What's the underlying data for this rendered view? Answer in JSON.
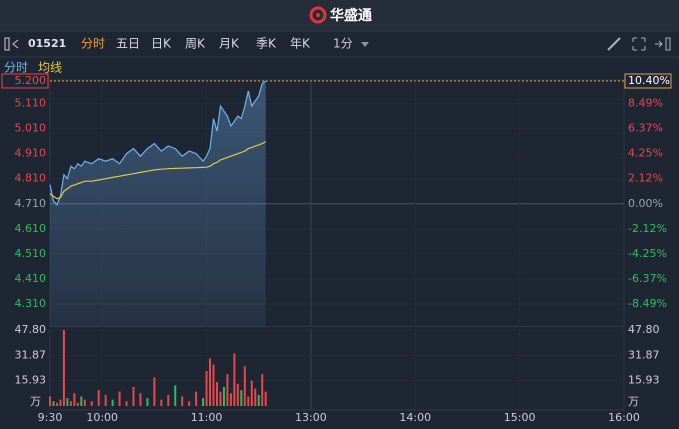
{
  "header": {
    "logo": "华盛通"
  },
  "toolbar": {
    "code": "01521",
    "tabs": [
      "分时",
      "五日",
      "日K",
      "周K",
      "月K",
      "季K",
      "年K"
    ],
    "active_tab": 0,
    "interval": "1分"
  },
  "chart_data": {
    "type": "line",
    "x": [
      0,
      2,
      4,
      6,
      8,
      10,
      12,
      14,
      16,
      18,
      20,
      24,
      28,
      32,
      36,
      40,
      44,
      48,
      52,
      56,
      60,
      64,
      68,
      72,
      76,
      80,
      84,
      88,
      90,
      92,
      94,
      96,
      98,
      100,
      102,
      104,
      106,
      108,
      110,
      112,
      114,
      116,
      118,
      120,
      122,
      124
    ],
    "xlim": [
      0,
      330
    ],
    "xticks": [
      {
        "value": 0,
        "label": "9:30"
      },
      {
        "value": 30,
        "label": "10:00"
      },
      {
        "value": 90,
        "label": "11:00"
      },
      {
        "value": 150,
        "label": "13:00"
      },
      {
        "value": 210,
        "label": "14:00"
      },
      {
        "value": 270,
        "label": "15:00"
      },
      {
        "value": 330,
        "label": "16:00"
      }
    ],
    "series": [
      {
        "name": "分时",
        "color": "#6db3f2",
        "values": [
          4.786,
          4.72,
          4.706,
          4.74,
          4.826,
          4.81,
          4.86,
          4.85,
          4.87,
          4.86,
          4.88,
          4.87,
          4.89,
          4.88,
          4.89,
          4.87,
          4.91,
          4.93,
          4.9,
          4.93,
          4.95,
          4.92,
          4.94,
          4.93,
          4.9,
          4.92,
          4.91,
          4.88,
          4.9,
          4.93,
          5.05,
          5.0,
          5.1,
          5.08,
          5.06,
          5.02,
          5.04,
          5.06,
          5.05,
          5.1,
          5.16,
          5.1,
          5.12,
          5.14,
          5.19,
          5.2
        ]
      },
      {
        "name": "均线",
        "color": "#e8c547",
        "values": [
          4.75,
          4.74,
          4.73,
          4.735,
          4.76,
          4.77,
          4.78,
          4.785,
          4.79,
          4.795,
          4.8,
          4.8,
          4.805,
          4.81,
          4.815,
          4.82,
          4.825,
          4.83,
          4.835,
          4.84,
          4.845,
          4.848,
          4.85,
          4.851,
          4.852,
          4.853,
          4.854,
          4.855,
          4.856,
          4.86,
          4.87,
          4.875,
          4.885,
          4.89,
          4.895,
          4.9,
          4.905,
          4.91,
          4.915,
          4.92,
          4.93,
          4.935,
          4.94,
          4.945,
          4.95,
          4.958
        ]
      }
    ],
    "ylim": [
      4.22,
      5.2
    ],
    "yticks": [
      {
        "value": 5.2,
        "label": "5.200"
      },
      {
        "value": 5.11,
        "label": "5.110"
      },
      {
        "value": 5.01,
        "label": "5.010"
      },
      {
        "value": 4.91,
        "label": "4.910"
      },
      {
        "value": 4.81,
        "label": "4.810"
      },
      {
        "value": 4.71,
        "label": "4.710"
      },
      {
        "value": 4.61,
        "label": "4.610"
      },
      {
        "value": 4.51,
        "label": "4.510"
      },
      {
        "value": 4.41,
        "label": "4.410"
      },
      {
        "value": 4.31,
        "label": "4.310"
      }
    ],
    "y2lim": [
      -10.4,
      10.4
    ],
    "y2ticks": [
      {
        "value": 10.4,
        "label": "10.40%"
      },
      {
        "value": 8.49,
        "label": "8.49%"
      },
      {
        "value": 6.37,
        "label": "6.37%"
      },
      {
        "value": 4.25,
        "label": "4.25%"
      },
      {
        "value": 2.12,
        "label": "2.12%"
      },
      {
        "value": 0,
        "label": "0.00%"
      },
      {
        "value": -2.12,
        "label": "-2.12%"
      },
      {
        "value": -4.25,
        "label": "-4.25%"
      },
      {
        "value": -6.37,
        "label": "-6.37%"
      },
      {
        "value": -8.49,
        "label": "-8.49%"
      }
    ],
    "volume": {
      "unit": "万",
      "values": [
        6,
        3,
        2,
        4,
        47.8,
        5,
        3,
        8,
        2,
        6,
        4,
        3,
        10,
        7,
        4,
        9,
        3,
        12,
        8,
        5,
        18,
        4,
        7,
        13,
        6,
        3,
        9,
        5,
        22,
        30,
        26,
        15,
        9,
        12,
        20,
        8,
        33,
        14,
        10,
        25,
        6,
        16,
        11,
        7,
        20,
        9
      ],
      "colors": [
        "#e8474c",
        "#2ebd59",
        "#e8474c",
        "#e8474c",
        "#e8474c",
        "#2ebd59",
        "#e8474c",
        "#e8474c",
        "#e8474c",
        "#2ebd59",
        "#e8474c",
        "#e8474c",
        "#e8474c",
        "#e8474c",
        "#2ebd59",
        "#e8474c",
        "#e8474c",
        "#e8474c",
        "#e8474c",
        "#2ebd59",
        "#e8474c",
        "#e8474c",
        "#e8474c",
        "#2ebd59",
        "#e8474c",
        "#e8474c",
        "#e8474c",
        "#2ebd59",
        "#e8474c",
        "#e8474c",
        "#e8474c",
        "#e8474c",
        "#e8474c",
        "#2ebd59",
        "#e8474c",
        "#e8474c",
        "#e8474c",
        "#e8474c",
        "#2ebd59",
        "#e8474c",
        "#e8474c",
        "#e8474c",
        "#e8474c",
        "#2ebd59",
        "#e8474c",
        "#e8474c"
      ],
      "ylim": [
        0,
        47.8
      ],
      "yticks": [
        15.93,
        31.87,
        {
          "value": 47.8,
          "label": "47.80"
        }
      ]
    }
  }
}
